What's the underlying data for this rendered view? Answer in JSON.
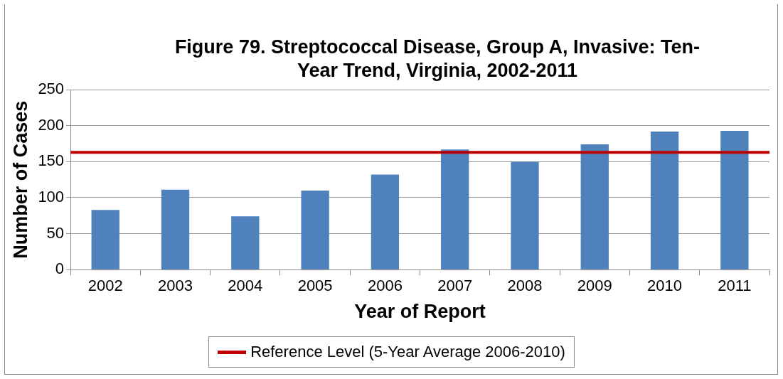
{
  "chart_data": {
    "type": "bar",
    "title": "Figure 79. Streptococcal Disease, Group A, Invasive: Ten-Year Trend, Virginia, 2002-2011",
    "xlabel": "Year of Report",
    "ylabel": "Number of Cases",
    "categories": [
      "2002",
      "2003",
      "2004",
      "2005",
      "2006",
      "2007",
      "2008",
      "2009",
      "2010",
      "2011"
    ],
    "values": [
      83,
      111,
      74,
      110,
      132,
      167,
      150,
      174,
      192,
      193
    ],
    "color": "#4f81bd",
    "ylim": [
      0,
      250
    ],
    "yticks": [
      0,
      50,
      100,
      150,
      200,
      250
    ],
    "grid": "y",
    "legend": "bottom",
    "ref_lines": [
      {
        "axis": "y",
        "value": 163,
        "label": "Reference Level (5-Year Average 2006-2010)",
        "color": "#c00000",
        "line_style": "solid"
      }
    ]
  }
}
